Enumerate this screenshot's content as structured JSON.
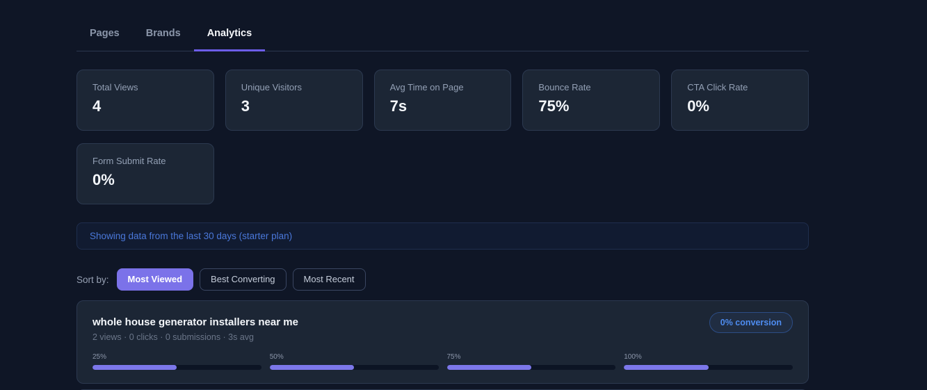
{
  "tabs": [
    {
      "label": "Pages",
      "active": false
    },
    {
      "label": "Brands",
      "active": false
    },
    {
      "label": "Analytics",
      "active": true
    }
  ],
  "stats": [
    {
      "label": "Total Views",
      "value": "4"
    },
    {
      "label": "Unique Visitors",
      "value": "3"
    },
    {
      "label": "Avg Time on Page",
      "value": "7s"
    },
    {
      "label": "Bounce Rate",
      "value": "75%"
    },
    {
      "label": "CTA Click Rate",
      "value": "0%"
    },
    {
      "label": "Form Submit Rate",
      "value": "0%"
    }
  ],
  "notice": "Showing data from the last 30 days (starter plan)",
  "sort": {
    "label": "Sort by:",
    "options": [
      {
        "label": "Most Viewed",
        "active": true
      },
      {
        "label": "Best Converting",
        "active": false
      },
      {
        "label": "Most Recent",
        "active": false
      }
    ]
  },
  "result": {
    "title": "whole house generator installers near me",
    "meta": "2 views · 0 clicks · 0 submissions · 3s avg",
    "badge": "0% conversion",
    "scroll_depth": [
      {
        "label": "25%",
        "fill_pct": 50
      },
      {
        "label": "50%",
        "fill_pct": 50
      },
      {
        "label": "75%",
        "fill_pct": 50
      },
      {
        "label": "100%",
        "fill_pct": 50
      }
    ]
  },
  "colors": {
    "page_bg": "#0f1626",
    "card_bg": "#1c2635",
    "card_border": "#2c3950",
    "accent_purple": "#7b72e9",
    "tab_underline": "#6c5de8",
    "notice_text": "#4a78da",
    "badge_text": "#4e8cf0",
    "progress_fill": "#7c77ea"
  }
}
